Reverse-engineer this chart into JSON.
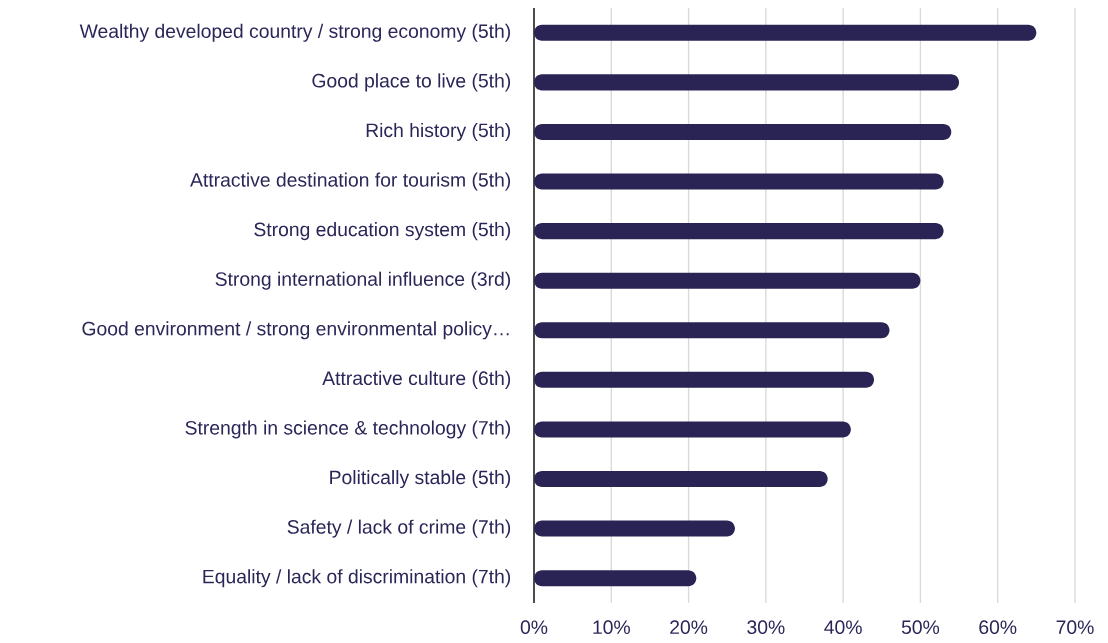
{
  "chart_data": {
    "type": "bar",
    "orientation": "horizontal",
    "categories": [
      "Wealthy developed country / strong economy (5th)",
      "Good place to live (5th)",
      "Rich history (5th)",
      "Attractive destination for tourism (5th)",
      "Strong education system (5th)",
      "Strong international influence (3rd)",
      "Good environment / strong environmental policy…",
      "Attractive culture (6th)",
      "Strength in science & technology (7th)",
      "Politically stable (5th)",
      "Safety / lack of crime (7th)",
      "Equality / lack of discrimination (7th)"
    ],
    "values": [
      65,
      55,
      54,
      53,
      53,
      50,
      46,
      44,
      41,
      38,
      26,
      21
    ],
    "color": "#2a2454",
    "xlim": [
      0,
      70
    ],
    "xticks": [
      {
        "value": 0,
        "label": "0%"
      },
      {
        "value": 10,
        "label": "10%"
      },
      {
        "value": 20,
        "label": "20%"
      },
      {
        "value": 30,
        "label": "30%"
      },
      {
        "value": 40,
        "label": "40%"
      },
      {
        "value": 50,
        "label": "50%"
      },
      {
        "value": 60,
        "label": "60%"
      },
      {
        "value": 70,
        "label": "70%"
      }
    ],
    "grid": "x"
  }
}
